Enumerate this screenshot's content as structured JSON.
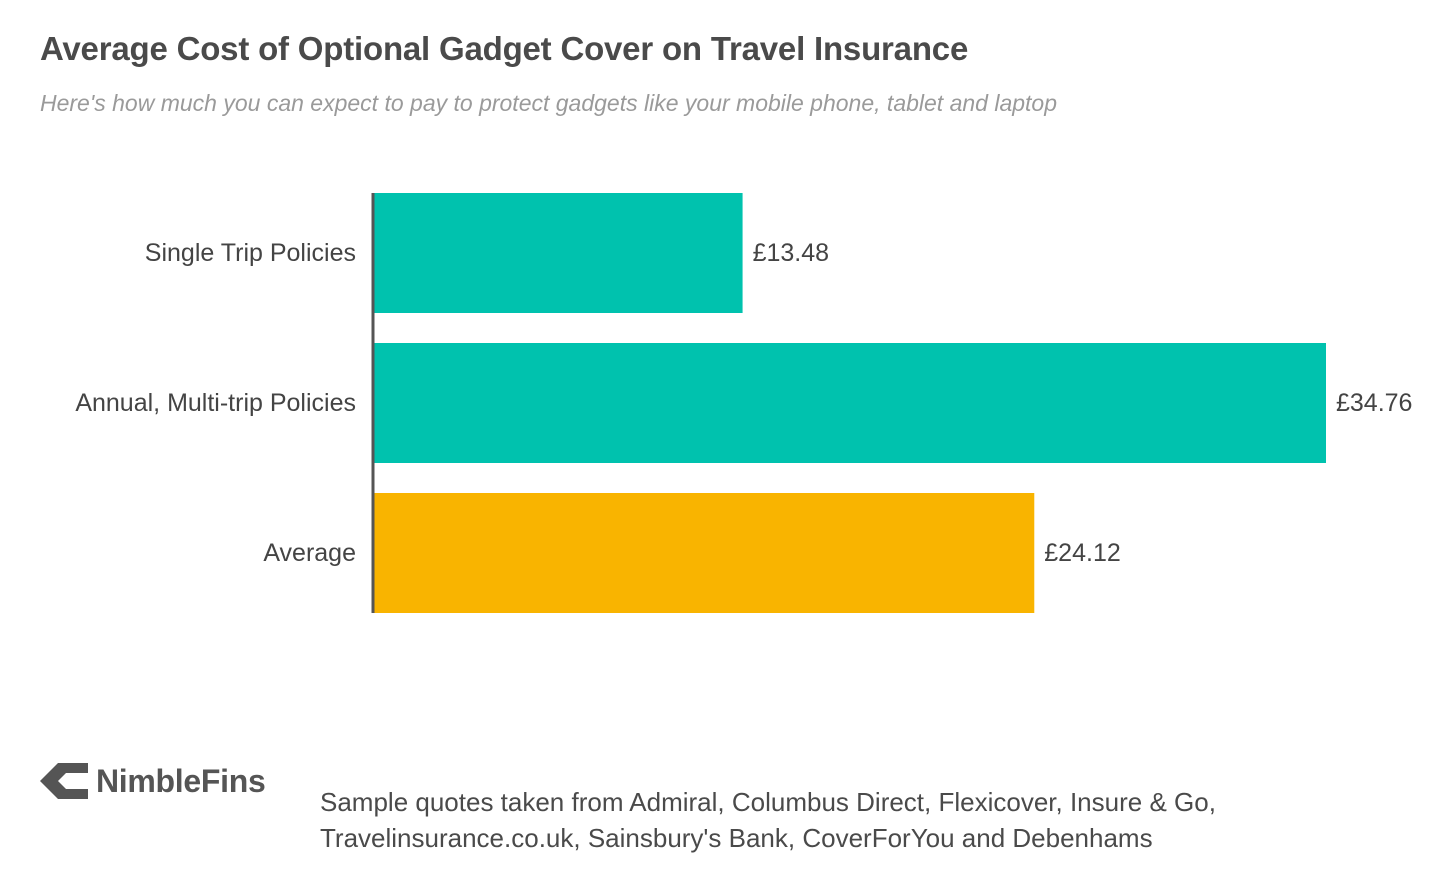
{
  "header": {
    "title": "Average Cost of Optional Gadget Cover on Travel Insurance",
    "subtitle": "Here's how much you can expect to pay to protect gadgets like your mobile phone, tablet and laptop"
  },
  "chart_data": {
    "type": "bar",
    "orientation": "horizontal",
    "categories": [
      "Single Trip Policies",
      "Annual, Multi-trip Policies",
      "Average"
    ],
    "values": [
      13.48,
      34.76,
      24.12
    ],
    "value_labels": [
      "£13.48",
      "£34.76",
      "£24.12"
    ],
    "colors": [
      "#00c2ae",
      "#00c2ae",
      "#f9b400"
    ],
    "axis_color": "#555555",
    "xlim": [
      0,
      34.76
    ],
    "grid": false,
    "title": "Average Cost of Optional Gadget Cover on Travel Insurance",
    "subtitle": "Here's how much you can expect to pay to protect gadgets like your mobile phone, tablet and laptop",
    "xlabel": "",
    "ylabel": ""
  },
  "footer": {
    "brand": "NimbleFins",
    "brand_icon": "chevron-left-icon",
    "source_lines": [
      "Sample quotes taken from Admiral, Columbus Direct, Flexicover, Insure & Go,",
      "Travelinsurance.co.uk, Sainsbury's Bank, CoverForYou and Debenhams"
    ]
  }
}
